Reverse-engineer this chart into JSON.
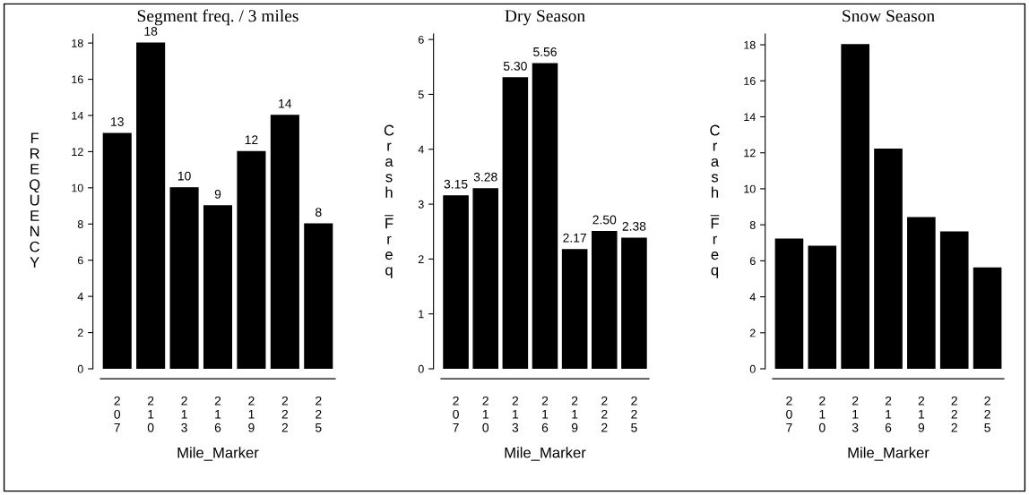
{
  "chart_data": [
    {
      "type": "bar",
      "title": "Segment freq. / 3 miles",
      "xlabel": "Mile_Marker",
      "ylabel": "FREQUENCY",
      "categories": [
        "207",
        "210",
        "213",
        "216",
        "219",
        "222",
        "225"
      ],
      "values": [
        13,
        18,
        10,
        9,
        12,
        14,
        8
      ],
      "color": "#000000",
      "ylim": [
        0,
        18.5
      ],
      "yticks": [
        0,
        2,
        4,
        6,
        8,
        10,
        12,
        14,
        16,
        18
      ],
      "data_labels": true,
      "grid": false
    },
    {
      "type": "bar",
      "title": "Dry Season",
      "xlabel": "Mile_Marker",
      "ylabel": "Crash_Freq",
      "categories": [
        "207",
        "210",
        "213",
        "216",
        "219",
        "222",
        "225"
      ],
      "values": [
        3.15,
        3.28,
        5.3,
        5.56,
        2.17,
        2.5,
        2.38
      ],
      "value_labels": [
        "3.15",
        "3.28",
        "5.30",
        "5.56",
        "2.17",
        "2.50",
        "2.38"
      ],
      "color": "#000000",
      "ylim": [
        0,
        6.1
      ],
      "yticks": [
        0,
        1,
        2,
        3,
        4,
        5,
        6
      ],
      "grid": false
    },
    {
      "type": "bar",
      "title": "Snow Season",
      "xlabel": "Mile_Marker",
      "ylabel": "Crash_Freq",
      "categories": [
        "207",
        "210",
        "213",
        "216",
        "219",
        "222",
        "225"
      ],
      "values": [
        7.2,
        6.8,
        18,
        12.2,
        8.4,
        7.6,
        5.6
      ],
      "color": "#000000",
      "ylim": [
        0,
        18.6
      ],
      "yticks": [
        0,
        2,
        4,
        6,
        8,
        10,
        12,
        14,
        16,
        18
      ],
      "grid": false
    }
  ]
}
